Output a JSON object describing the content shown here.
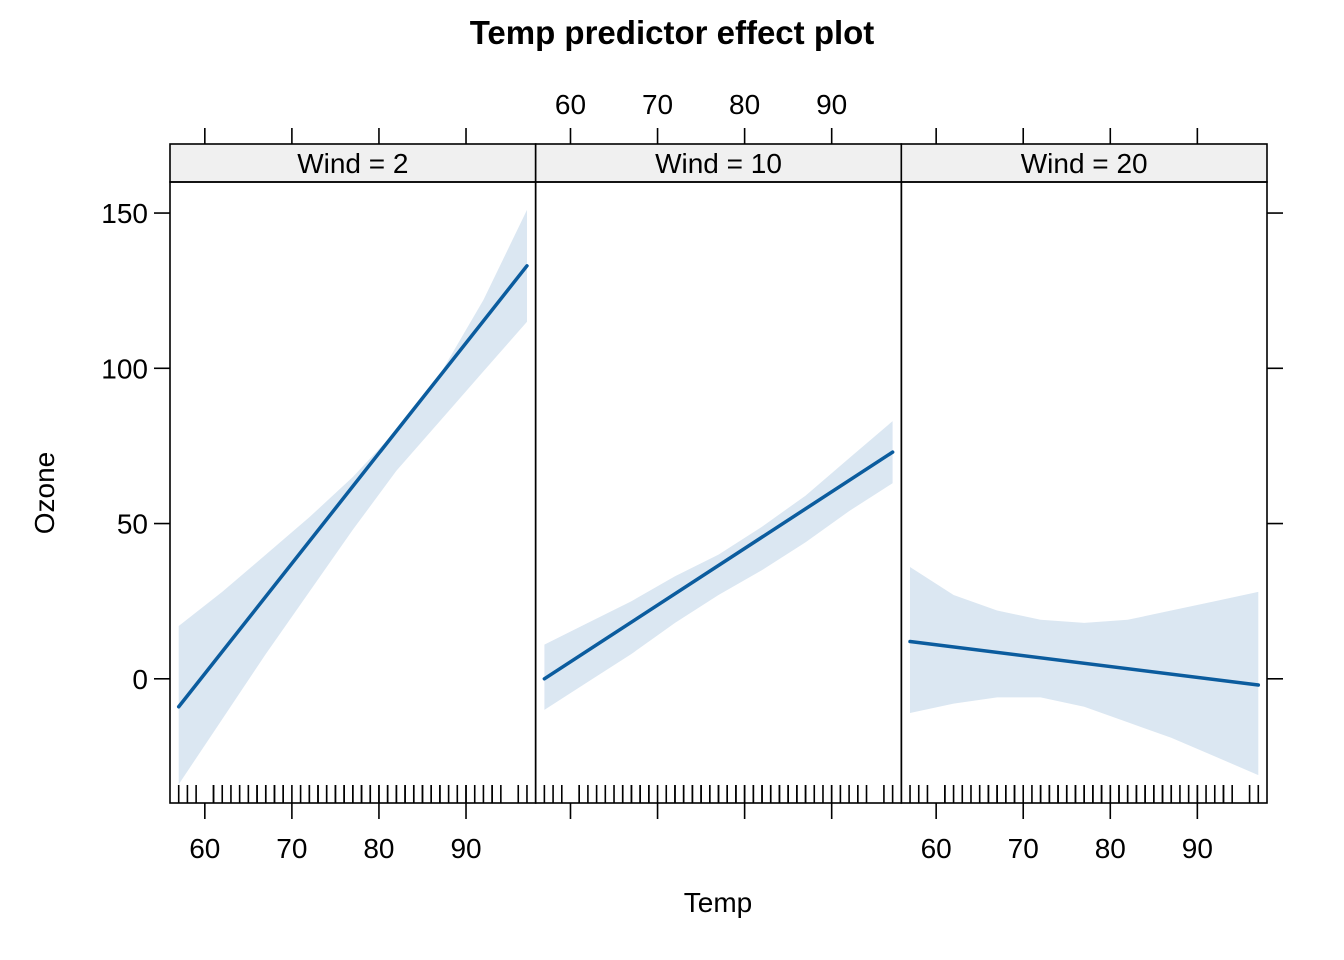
{
  "chart_data": {
    "type": "line",
    "title": "Temp predictor effect plot",
    "xlabel": "Temp",
    "ylabel": "Ozone",
    "xlim": [
      56,
      98
    ],
    "ylim": [
      -40,
      160
    ],
    "xticks": [
      60,
      70,
      80,
      90
    ],
    "xtick_labels": [
      "60",
      "70",
      "80",
      "90"
    ],
    "yticks": [
      0,
      50,
      100,
      150
    ],
    "ytick_labels": [
      "0",
      "50",
      "100",
      "150"
    ],
    "grid": false,
    "line_color": "#0b5c9e",
    "band_color": "#dbe7f2",
    "strip_color": "#f0f0f0",
    "rug_temps": [
      57,
      58,
      59,
      61,
      61,
      62,
      63,
      64,
      65,
      66,
      66,
      67,
      67,
      68,
      68,
      69,
      69,
      70,
      71,
      72,
      72,
      73,
      73,
      74,
      74,
      75,
      75,
      76,
      76,
      77,
      77,
      78,
      78,
      79,
      79,
      80,
      80,
      81,
      81,
      82,
      82,
      83,
      83,
      84,
      84,
      85,
      85,
      86,
      86,
      87,
      87,
      88,
      89,
      90,
      90,
      91,
      92,
      93,
      93,
      94,
      96,
      97
    ],
    "panels": [
      {
        "strip": "Wind = 2",
        "x": [
          57,
          97
        ],
        "y": [
          -9,
          133
        ],
        "band_x": [
          57,
          62,
          67,
          72,
          77,
          82,
          87,
          92,
          97
        ],
        "band_lower": [
          -34,
          -13,
          8,
          28,
          48,
          67,
          83,
          99,
          115
        ],
        "band_upper": [
          17,
          28,
          40,
          52,
          65,
          80,
          98,
          122,
          151
        ]
      },
      {
        "strip": "Wind = 10",
        "x": [
          57,
          97
        ],
        "y": [
          0,
          73
        ],
        "band_x": [
          57,
          62,
          67,
          72,
          77,
          82,
          87,
          92,
          97
        ],
        "band_lower": [
          -10,
          -1,
          8,
          18,
          27,
          35,
          44,
          54,
          63
        ],
        "band_upper": [
          11,
          18,
          25,
          33,
          40,
          49,
          59,
          71,
          83
        ]
      },
      {
        "strip": "Wind = 20",
        "x": [
          57,
          97
        ],
        "y": [
          12,
          -2
        ],
        "band_x": [
          57,
          62,
          67,
          72,
          77,
          82,
          87,
          92,
          97
        ],
        "band_lower": [
          -11,
          -8,
          -6,
          -6,
          -9,
          -14,
          -19,
          -25,
          -31
        ],
        "band_upper": [
          36,
          27,
          22,
          19,
          18,
          19,
          22,
          25,
          28
        ]
      }
    ]
  }
}
